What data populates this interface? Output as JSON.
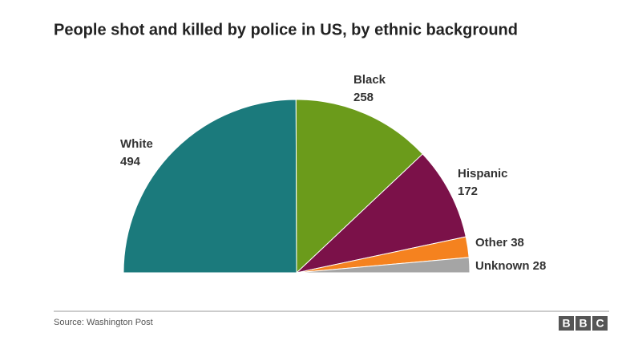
{
  "chart_data": {
    "type": "half-pie",
    "title": "People shot and killed by police in US, by ethnic background",
    "categories": [
      "White",
      "Black",
      "Hispanic",
      "Other",
      "Unknown"
    ],
    "values": [
      494,
      258,
      172,
      38,
      28
    ],
    "colors": [
      "#1b7a7c",
      "#6b9b1b",
      "#7b1149",
      "#f5821f",
      "#a5a5a5"
    ],
    "source": "Source:  Washington Post",
    "logo": [
      "B",
      "B",
      "C"
    ]
  }
}
